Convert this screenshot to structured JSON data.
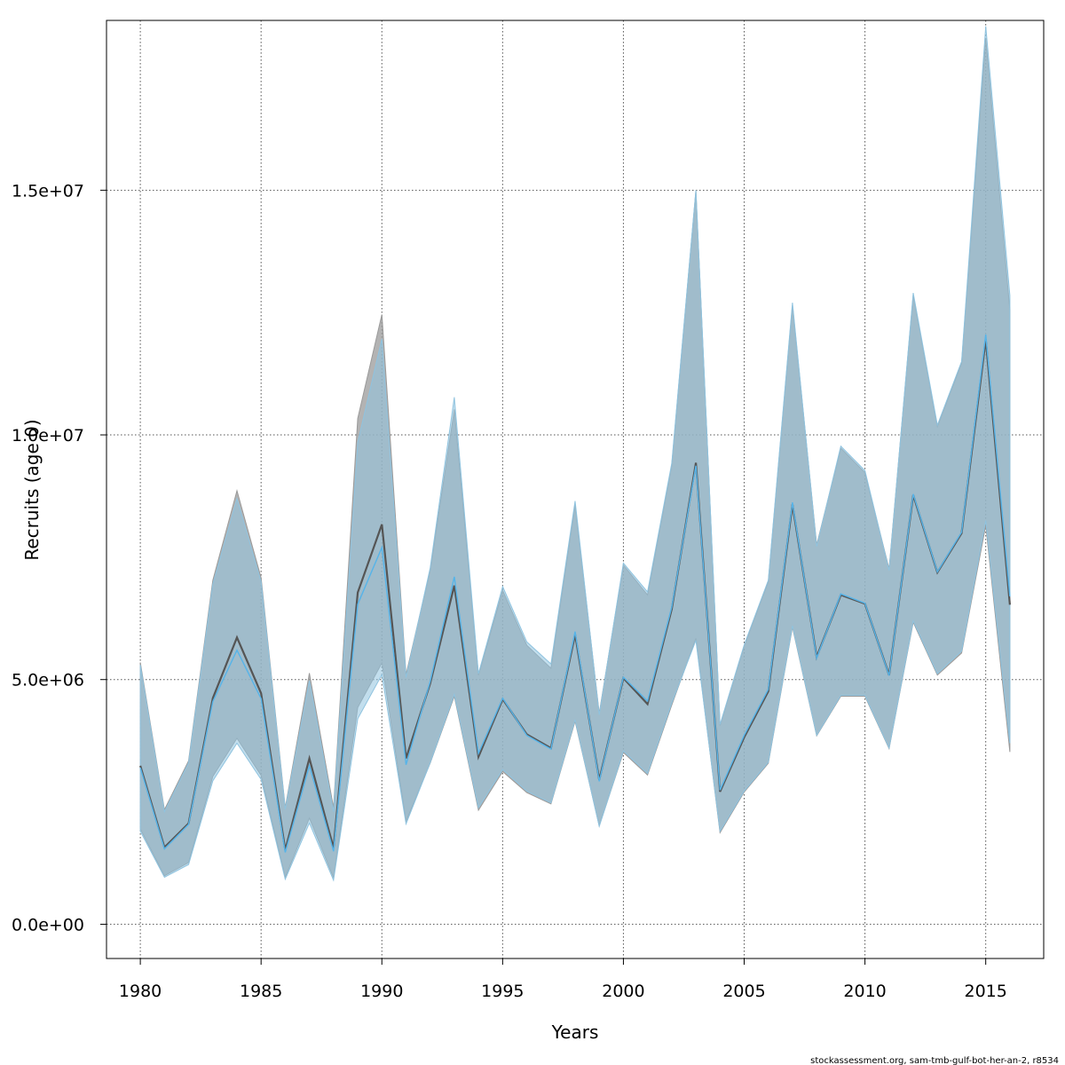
{
  "chart_data": {
    "type": "area",
    "xlabel": "Years",
    "ylabel": "Recruits (age 0)",
    "footer": "stockassessment.org, sam-tmb-gulf-bot-her-an-2, r8534",
    "xlim": [
      1978.6,
      2017.4
    ],
    "ylim": [
      -700000,
      18470000
    ],
    "x_ticks": [
      1980,
      1985,
      1990,
      1995,
      2000,
      2005,
      2010,
      2015
    ],
    "y_ticks": [
      0,
      5000000,
      10000000,
      15000000
    ],
    "y_tick_labels": [
      "0.0e+00",
      "5.0e+06",
      "1.0e+07",
      "1.5e+07"
    ],
    "grid": true,
    "x": [
      1980,
      1981,
      1982,
      1983,
      1984,
      1985,
      1986,
      1987,
      1988,
      1989,
      1990,
      1991,
      1992,
      1993,
      1994,
      1995,
      1996,
      1997,
      1998,
      1999,
      2000,
      2001,
      2002,
      2003,
      2004,
      2005,
      2006,
      2007,
      2008,
      2009,
      2010,
      2011,
      2012,
      2013,
      2014,
      2015,
      2016
    ],
    "series": [
      {
        "color": "#555555",
        "band_color": "#9a9a9a",
        "estimate": [
          3240000,
          1570000,
          2060000,
          4620000,
          5860000,
          4720000,
          1520000,
          3390000,
          1560000,
          6780000,
          8170000,
          3390000,
          4920000,
          6920000,
          3420000,
          4600000,
          3880000,
          3600000,
          5920000,
          2950000,
          5030000,
          4500000,
          6440000,
          9430000,
          2710000,
          3820000,
          4760000,
          8580000,
          5460000,
          6730000,
          6550000,
          5090000,
          8770000,
          7190000,
          7990000,
          11950000,
          6530000
        ],
        "lower": [
          1950000,
          990000,
          1260000,
          3020000,
          3800000,
          3040000,
          960000,
          2170000,
          950000,
          4430000,
          5340000,
          2100000,
          3290000,
          4660000,
          2330000,
          3120000,
          2690000,
          2460000,
          4150000,
          2010000,
          3510000,
          3050000,
          4480000,
          5840000,
          1870000,
          2700000,
          3290000,
          6070000,
          3850000,
          4660000,
          4660000,
          3590000,
          6170000,
          5090000,
          5540000,
          8150000,
          3520000
        ],
        "upper": [
          5350000,
          2340000,
          3340000,
          7030000,
          8860000,
          7080000,
          2380000,
          5130000,
          2380000,
          10340000,
          12460000,
          5100000,
          7230000,
          10520000,
          5090000,
          6820000,
          5700000,
          5230000,
          8580000,
          4310000,
          7340000,
          6730000,
          9380000,
          14990000,
          4060000,
          5690000,
          7000000,
          12650000,
          7750000,
          9730000,
          9230000,
          7260000,
          12860000,
          10170000,
          11470000,
          18110000,
          12550000
        ]
      },
      {
        "color": "#56b4e9",
        "band_color": "#8fc3df",
        "estimate": [
          3200000,
          1540000,
          2040000,
          4550000,
          5600000,
          4610000,
          1470000,
          3240000,
          1490000,
          6540000,
          7700000,
          3260000,
          4960000,
          7100000,
          3490000,
          4620000,
          3860000,
          3580000,
          5980000,
          2920000,
          5050000,
          4560000,
          6480000,
          9370000,
          2740000,
          3860000,
          4800000,
          8620000,
          5440000,
          6750000,
          6560000,
          5080000,
          8790000,
          7200000,
          8010000,
          12050000,
          6700000
        ],
        "lower": [
          1900000,
          960000,
          1220000,
          2930000,
          3700000,
          2960000,
          920000,
          2070000,
          900000,
          4200000,
          5100000,
          2050000,
          3300000,
          4700000,
          2380000,
          3160000,
          2720000,
          2480000,
          4180000,
          2000000,
          3540000,
          3080000,
          4520000,
          5800000,
          1900000,
          2720000,
          3310000,
          6100000,
          3860000,
          4680000,
          4680000,
          3600000,
          6200000,
          5120000,
          5580000,
          8250000,
          3700000
        ],
        "upper": [
          5300000,
          2300000,
          3300000,
          6950000,
          8700000,
          7000000,
          2350000,
          4980000,
          2300000,
          9850000,
          11960000,
          5040000,
          7280000,
          10770000,
          5120000,
          6900000,
          5770000,
          5320000,
          8650000,
          4280000,
          7380000,
          6790000,
          9420000,
          15000000,
          4080000,
          5710000,
          7030000,
          12700000,
          7720000,
          9770000,
          9270000,
          7230000,
          12900000,
          10200000,
          11500000,
          18350000,
          12850000
        ]
      }
    ]
  }
}
